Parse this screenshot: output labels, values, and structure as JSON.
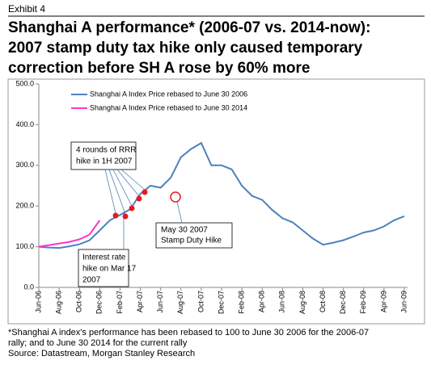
{
  "chart_data": {
    "type": "line",
    "exhibit": "Exhibit 4",
    "title": [
      "Shanghai A performance* (2006-07 vs. 2014-now):",
      "2007 stamp duty tax hike only caused temporary",
      "correction before SH A rose by 60% more"
    ],
    "categories": [
      "Jun-06",
      null,
      "Aug-06",
      null,
      "Oct-06",
      null,
      "Dec-06",
      null,
      "Feb-07",
      null,
      "Apr-07",
      null,
      "Jun-07",
      null,
      "Aug-07",
      null,
      "Oct-07",
      null,
      "Dec-07",
      null,
      "Feb-08",
      null,
      "Apr-08",
      null,
      "Jun-08",
      null,
      "Aug-08",
      null,
      "Oct-08",
      null,
      "Dec-08",
      null,
      "Feb-09",
      null,
      "Apr-09",
      null,
      "Jun-09"
    ],
    "series": [
      {
        "name": "Shanghai A Index Price rebased to June 30 2006",
        "color": "#4f81bd",
        "values": [
          100,
          98,
          97,
          101,
          106,
          116,
          140,
          165,
          178,
          192,
          230,
          250,
          245,
          270,
          320,
          340,
          355,
          300,
          300,
          290,
          250,
          225,
          215,
          190,
          170,
          160,
          140,
          120,
          105,
          110,
          116,
          125,
          135,
          140,
          150,
          165,
          175
        ]
      },
      {
        "name": "Shanghai A Index Price rebased to June 30 2014",
        "color": "#ff33cc",
        "values": [
          100,
          104,
          108,
          112,
          118,
          130,
          165,
          null,
          null,
          null,
          null,
          null,
          null,
          null,
          null,
          null,
          null,
          null,
          null,
          null,
          null,
          null,
          null,
          null,
          null,
          null,
          null,
          null,
          null,
          null,
          null,
          null,
          null,
          null,
          null,
          null,
          null
        ]
      }
    ],
    "ylim": [
      0,
      500
    ],
    "yticks": [
      {
        "value": 0,
        "label": "0.0"
      },
      {
        "value": 100,
        "label": "100.0"
      },
      {
        "value": 200,
        "label": "200.0"
      },
      {
        "value": 300,
        "label": "300.0"
      },
      {
        "value": 400,
        "label": "400.0"
      },
      {
        "value": 500,
        "label": "500.0"
      }
    ],
    "annotations": [
      {
        "lines": [
          "4 rounds of RRR",
          "hike in 1H 2007"
        ]
      },
      {
        "lines": [
          "May 30 2007",
          "Stamp Duty Hike"
        ]
      },
      {
        "lines": [
          "Interest rate",
          "hike on Mar 17",
          "2007"
        ]
      }
    ],
    "footnote": [
      "*Shanghai A index's performance has been rebased to 100 to June 30 2006 for the 2006-07",
      "rally; and to June 30 2014 for the current rally"
    ],
    "source": "Source: Datastream, Morgan Stanley Research"
  }
}
